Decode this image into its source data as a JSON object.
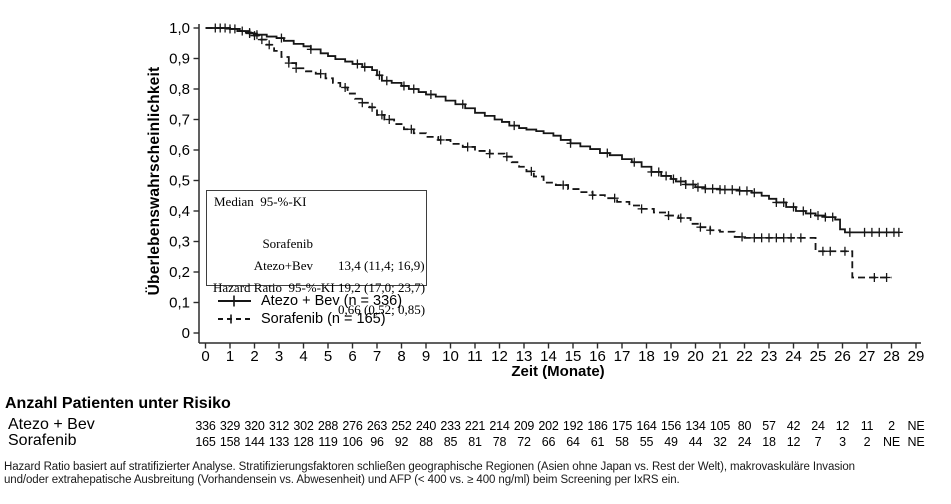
{
  "figure": {
    "y_axis_label": "Überlebenswahrscheinlichkeit",
    "x_axis_label": "Zeit (Monate)",
    "stats_box": {
      "title": "Median  95-%-KI",
      "rows": [
        {
          "label": "Sorafenib",
          "value": "13,4 (11,4; 16,9)"
        },
        {
          "label": "Atezo+Bev",
          "value": "19,2 (17,0; 23,7)"
        },
        {
          "label": "Hazard Ratio  95-%-KI",
          "value": "0,66 (0,52; 0,85)"
        }
      ]
    },
    "legend": [
      {
        "label": "Atezo + Bev (n = 336)",
        "line": "solid"
      },
      {
        "label": "Sorafenib (n = 165)",
        "line": "dashed"
      }
    ]
  },
  "chart_data": {
    "type": "line",
    "subtype": "kaplan-meier-step",
    "title": "",
    "xlabel": "Zeit (Monate)",
    "ylabel": "Überlebenswahrscheinlichkeit",
    "xlim": [
      0,
      29
    ],
    "ylim": [
      0,
      1.0
    ],
    "x_ticks": [
      0,
      1,
      2,
      3,
      4,
      5,
      6,
      7,
      8,
      9,
      10,
      11,
      12,
      13,
      14,
      15,
      16,
      17,
      18,
      19,
      20,
      21,
      22,
      23,
      24,
      25,
      26,
      27,
      28,
      29
    ],
    "x_tick_labels": [
      "0",
      "1",
      "2",
      "3",
      "4",
      "5",
      "6",
      "7",
      "8",
      "9",
      "10",
      "11",
      "12",
      "13",
      "14",
      "15",
      "16",
      "17",
      "18",
      "19",
      "20",
      "21",
      "22",
      "23",
      "24",
      "25",
      "26",
      "27",
      "28",
      "29"
    ],
    "y_ticks": [
      1.0,
      0.9,
      0.8,
      0.7,
      0.6,
      0.5,
      0.4,
      0.3,
      0.2,
      0.1,
      0
    ],
    "y_tick_labels": [
      "1,0",
      "0,9",
      "0,8",
      "0,7",
      "0,6",
      "0,5",
      "0,4",
      "0,3",
      "0,2",
      "0,1",
      "0"
    ],
    "grid": false,
    "legend_position": "lower-left-inside",
    "hazard_ratio": "0,66 (0,52; 0,85)",
    "medians": {
      "Sorafenib": "13,4 (11,4; 16,9)",
      "Atezo+Bev": "19,2 (17,0; 23,7)"
    },
    "series": [
      {
        "name": "Atezo + Bev (n = 336)",
        "line": "solid",
        "n": 336,
        "median_months": 19.2,
        "steps": [
          [
            0,
            1.0
          ],
          [
            0.8,
            1.0
          ],
          [
            1.0,
            0.997
          ],
          [
            1.4,
            0.99
          ],
          [
            1.8,
            0.982
          ],
          [
            2.1,
            0.978
          ],
          [
            2.5,
            0.972
          ],
          [
            2.9,
            0.967
          ],
          [
            3.2,
            0.958
          ],
          [
            3.6,
            0.948
          ],
          [
            4.0,
            0.94
          ],
          [
            4.3,
            0.93
          ],
          [
            4.7,
            0.917
          ],
          [
            5.0,
            0.908
          ],
          [
            5.3,
            0.898
          ],
          [
            5.7,
            0.89
          ],
          [
            6.0,
            0.882
          ],
          [
            6.4,
            0.872
          ],
          [
            6.8,
            0.862
          ],
          [
            7.0,
            0.845
          ],
          [
            7.2,
            0.827
          ],
          [
            7.6,
            0.82
          ],
          [
            8.0,
            0.81
          ],
          [
            8.3,
            0.8
          ],
          [
            8.7,
            0.79
          ],
          [
            9.0,
            0.782
          ],
          [
            9.4,
            0.775
          ],
          [
            9.8,
            0.762
          ],
          [
            10.2,
            0.75
          ],
          [
            10.6,
            0.737
          ],
          [
            11.0,
            0.722
          ],
          [
            11.4,
            0.712
          ],
          [
            11.8,
            0.7
          ],
          [
            12.1,
            0.692
          ],
          [
            12.4,
            0.68
          ],
          [
            12.8,
            0.672
          ],
          [
            13.1,
            0.667
          ],
          [
            13.5,
            0.662
          ],
          [
            13.8,
            0.655
          ],
          [
            14.2,
            0.647
          ],
          [
            14.5,
            0.633
          ],
          [
            14.9,
            0.622
          ],
          [
            15.3,
            0.612
          ],
          [
            15.7,
            0.603
          ],
          [
            16.1,
            0.59
          ],
          [
            16.5,
            0.583
          ],
          [
            17.0,
            0.57
          ],
          [
            17.4,
            0.56
          ],
          [
            17.8,
            0.545
          ],
          [
            18.2,
            0.528
          ],
          [
            18.6,
            0.515
          ],
          [
            19.0,
            0.505
          ],
          [
            19.2,
            0.497
          ],
          [
            19.6,
            0.487
          ],
          [
            20.0,
            0.478
          ],
          [
            20.4,
            0.473
          ],
          [
            21.0,
            0.47
          ],
          [
            21.8,
            0.466
          ],
          [
            22.3,
            0.46
          ],
          [
            22.7,
            0.45
          ],
          [
            23.0,
            0.44
          ],
          [
            23.3,
            0.428
          ],
          [
            23.7,
            0.413
          ],
          [
            24.1,
            0.4
          ],
          [
            24.5,
            0.392
          ],
          [
            24.9,
            0.385
          ],
          [
            25.3,
            0.38
          ],
          [
            25.7,
            0.372
          ],
          [
            25.9,
            0.34
          ],
          [
            26.1,
            0.33
          ],
          [
            28.3,
            0.33
          ]
        ],
        "censor_times": [
          0.4,
          0.6,
          0.8,
          1.0,
          1.2,
          1.5,
          1.8,
          2.1,
          3.1,
          4.3,
          6.2,
          6.5,
          7.1,
          7.4,
          8.1,
          8.5,
          9.2,
          10.5,
          12.6,
          14.9,
          16.4,
          17.5,
          18.2,
          18.5,
          18.8,
          19.1,
          19.4,
          19.6,
          19.9,
          20.1,
          20.4,
          20.7,
          21.0,
          21.2,
          21.5,
          21.8,
          22.1,
          22.4,
          23.3,
          23.6,
          24.0,
          24.4,
          24.7,
          25.0,
          25.3,
          25.6,
          26.3,
          26.9,
          27.2,
          27.5,
          27.8,
          28.1,
          28.3
        ]
      },
      {
        "name": "Sorafenib (n = 165)",
        "line": "dashed",
        "n": 165,
        "median_months": 13.4,
        "steps": [
          [
            0,
            1.0
          ],
          [
            1.0,
            0.997
          ],
          [
            1.3,
            0.99
          ],
          [
            1.6,
            0.985
          ],
          [
            1.9,
            0.975
          ],
          [
            2.2,
            0.962
          ],
          [
            2.5,
            0.945
          ],
          [
            2.8,
            0.925
          ],
          [
            3.1,
            0.905
          ],
          [
            3.4,
            0.885
          ],
          [
            3.7,
            0.868
          ],
          [
            4.1,
            0.858
          ],
          [
            4.5,
            0.85
          ],
          [
            4.9,
            0.835
          ],
          [
            5.2,
            0.82
          ],
          [
            5.5,
            0.805
          ],
          [
            5.8,
            0.785
          ],
          [
            6.1,
            0.768
          ],
          [
            6.4,
            0.755
          ],
          [
            6.7,
            0.74
          ],
          [
            7.0,
            0.715
          ],
          [
            7.3,
            0.7
          ],
          [
            7.7,
            0.685
          ],
          [
            8.1,
            0.668
          ],
          [
            8.5,
            0.655
          ],
          [
            9.0,
            0.643
          ],
          [
            9.5,
            0.633
          ],
          [
            10.0,
            0.62
          ],
          [
            10.5,
            0.61
          ],
          [
            11.0,
            0.597
          ],
          [
            11.6,
            0.588
          ],
          [
            12.2,
            0.578
          ],
          [
            12.5,
            0.56
          ],
          [
            12.8,
            0.545
          ],
          [
            13.1,
            0.53
          ],
          [
            13.4,
            0.513
          ],
          [
            13.8,
            0.493
          ],
          [
            14.3,
            0.485
          ],
          [
            14.8,
            0.472
          ],
          [
            15.3,
            0.462
          ],
          [
            15.8,
            0.452
          ],
          [
            16.3,
            0.442
          ],
          [
            16.8,
            0.43
          ],
          [
            17.3,
            0.418
          ],
          [
            17.8,
            0.407
          ],
          [
            18.3,
            0.395
          ],
          [
            18.8,
            0.385
          ],
          [
            19.3,
            0.377
          ],
          [
            19.8,
            0.358
          ],
          [
            20.2,
            0.347
          ],
          [
            20.6,
            0.337
          ],
          [
            21.0,
            0.332
          ],
          [
            21.6,
            0.315
          ],
          [
            22.0,
            0.312
          ],
          [
            24.9,
            0.268
          ],
          [
            26.4,
            0.182
          ],
          [
            28.0,
            0.182
          ]
        ],
        "censor_times": [
          1.8,
          2.0,
          2.3,
          2.6,
          3.4,
          3.7,
          4.7,
          5.7,
          6.4,
          6.8,
          7.2,
          7.5,
          8.4,
          9.6,
          10.7,
          11.6,
          12.3,
          13.3,
          14.6,
          15.8,
          16.7,
          17.8,
          18.9,
          19.4,
          20.2,
          20.6,
          21.9,
          22.4,
          22.7,
          23.0,
          23.3,
          23.6,
          23.9,
          24.3,
          25.2,
          25.5,
          26.1,
          27.3,
          27.8
        ]
      }
    ]
  },
  "risk_table": {
    "title": "Anzahl Patienten unter Risiko",
    "months": [
      0,
      1,
      2,
      3,
      4,
      5,
      6,
      7,
      8,
      9,
      10,
      11,
      12,
      13,
      14,
      15,
      16,
      17,
      18,
      19,
      20,
      21,
      22,
      23,
      24,
      25,
      26,
      27,
      28,
      29
    ],
    "rows": [
      {
        "label": "Atezo + Bev",
        "counts": [
          "336",
          "329",
          "320",
          "312",
          "302",
          "288",
          "276",
          "263",
          "252",
          "240",
          "233",
          "221",
          "214",
          "209",
          "202",
          "192",
          "186",
          "175",
          "164",
          "156",
          "134",
          "105",
          "80",
          "57",
          "42",
          "24",
          "12",
          "11",
          "2",
          "NE"
        ]
      },
      {
        "label": "Sorafenib",
        "counts": [
          "165",
          "158",
          "144",
          "133",
          "128",
          "119",
          "106",
          "96",
          "92",
          "88",
          "85",
          "81",
          "78",
          "72",
          "66",
          "64",
          "61",
          "58",
          "55",
          "49",
          "44",
          "32",
          "24",
          "18",
          "12",
          "7",
          "3",
          "2",
          "NE",
          "NE"
        ]
      }
    ]
  },
  "footnote": {
    "line1": "Hazard Ratio basiert auf stratifizierter Analyse.  Stratifizierungsfaktoren schließen geographische Regionen (Asien ohne Japan vs. Rest der Welt), makrovaskuläre Invasion",
    "line2": "und/oder extrahepatische Ausbreitung (Vorhandensein vs. Abwesenheit) und AFP  (< 400 vs. ≥ 400 ng/ml) beim Screening per IxRS ein."
  },
  "colors": {
    "curve": "#161616",
    "axis": "#2b2b2b",
    "text": "#000000",
    "background": "#ffffff",
    "box_border": "#3e3e3e"
  }
}
